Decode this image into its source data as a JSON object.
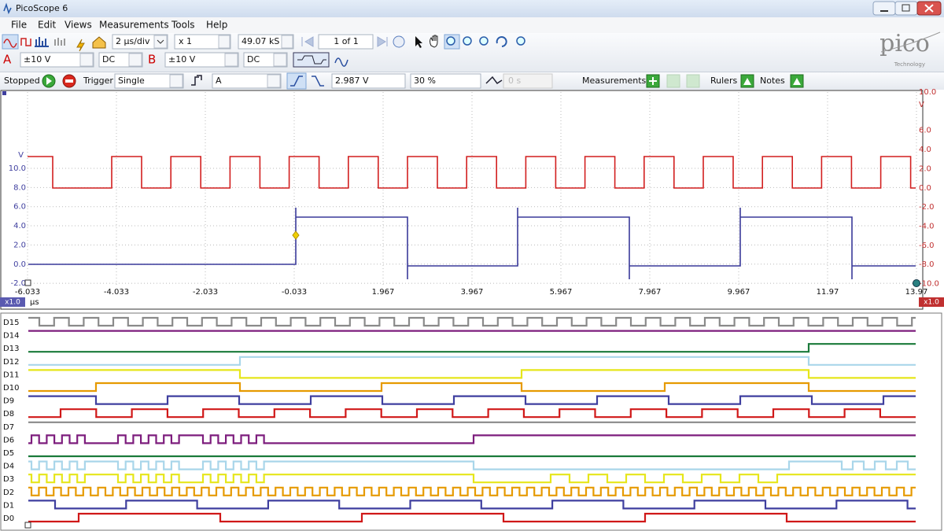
{
  "window": {
    "title": "PicoScope 6"
  },
  "menu": [
    "File",
    "Edit",
    "Views",
    "Measurements",
    "Tools",
    "Help"
  ],
  "toolbar": {
    "timebase": "2 µs/div",
    "zoom": "x 1",
    "samples": "49.07 kS",
    "page": "1 of 1"
  },
  "logo": {
    "name": "pico",
    "tagline": "Technology"
  },
  "channel_a": {
    "name": "A",
    "range": "±10 V",
    "coupling": "DC"
  },
  "channel_b": {
    "name": "B",
    "range": "±10 V",
    "coupling": "DC"
  },
  "trigger": {
    "status": "Stopped",
    "label": "Trigger",
    "mode": "Single",
    "source": "A",
    "threshold": "2.987 V",
    "pre_trigger": "30 %",
    "delay": "0 s"
  },
  "panels": {
    "measurements": "Measurements",
    "rulers": "Rulers",
    "notes": "Notes"
  },
  "scope": {
    "left_axis": {
      "unit": "V",
      "ticks": [
        "10.0",
        "8.0",
        "6.0",
        "4.0",
        "2.0",
        "0.0",
        "-2.0"
      ]
    },
    "right_axis": {
      "unit": "V",
      "ticks": [
        "10.0",
        "6.0",
        "4.0",
        "2.0",
        "0.0",
        "-2.0",
        "-4.0",
        "-6.0",
        "-8.0",
        "-10.0"
      ]
    },
    "x_axis": {
      "unit": "µs",
      "ticks": [
        "-6.033",
        "-4.033",
        "-2.033",
        "-0.033",
        "1.967",
        "3.967",
        "5.967",
        "7.967",
        "9.967",
        "11.97",
        "13.97"
      ]
    },
    "zoom_left": "x1.0",
    "zoom_right": "x1.0"
  },
  "digital": {
    "channels": [
      "D15",
      "D14",
      "D13",
      "D12",
      "D11",
      "D10",
      "D9",
      "D8",
      "D7",
      "D6",
      "D5",
      "D4",
      "D3",
      "D2",
      "D1",
      "D0"
    ]
  }
}
